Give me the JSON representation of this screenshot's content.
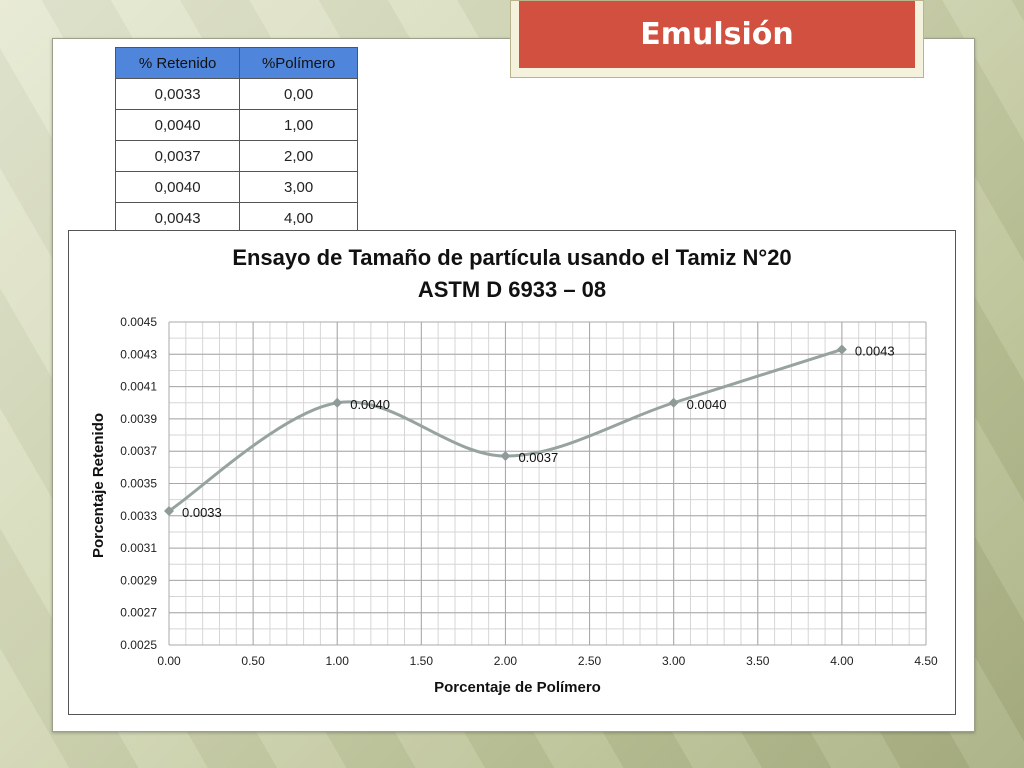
{
  "slide": {
    "title": "Emulsión"
  },
  "table": {
    "headers": [
      "% Retenido",
      "%Polímero"
    ],
    "rows": [
      [
        "0,0033",
        "0,00"
      ],
      [
        "0,0040",
        "1,00"
      ],
      [
        "0,0037",
        "2,00"
      ],
      [
        "0,0040",
        "3,00"
      ],
      [
        "0,0043",
        "4,00"
      ]
    ]
  },
  "chart_data": {
    "type": "line",
    "title_line1": "Ensayo de Tamaño de partícula usando el Tamiz N°20",
    "title_line2": "ASTM D 6933 – 08",
    "xlabel": "Porcentaje de Polímero",
    "ylabel": "Porcentaje Retenido",
    "x": [
      0,
      1,
      2,
      3,
      4
    ],
    "y": [
      0.00333,
      0.004,
      0.00367,
      0.004,
      0.00433
    ],
    "data_labels": [
      "0.0033",
      "0.0040",
      "0.0037",
      "0.0040",
      "0.0043"
    ],
    "xlim": [
      0,
      4.5
    ],
    "ylim": [
      0.0025,
      0.0045
    ],
    "x_ticks": [
      "0.00",
      "0.50",
      "1.00",
      "1.50",
      "2.00",
      "2.50",
      "3.00",
      "3.50",
      "4.00",
      "4.50"
    ],
    "y_ticks": [
      "0.0025",
      "0.0027",
      "0.0029",
      "0.0031",
      "0.0033",
      "0.0035",
      "0.0037",
      "0.0039",
      "0.0041",
      "0.0043",
      "0.0045"
    ],
    "smooth": true,
    "grid": true,
    "line_color": "#97a3a0",
    "marker_color": "#8f9b98"
  }
}
